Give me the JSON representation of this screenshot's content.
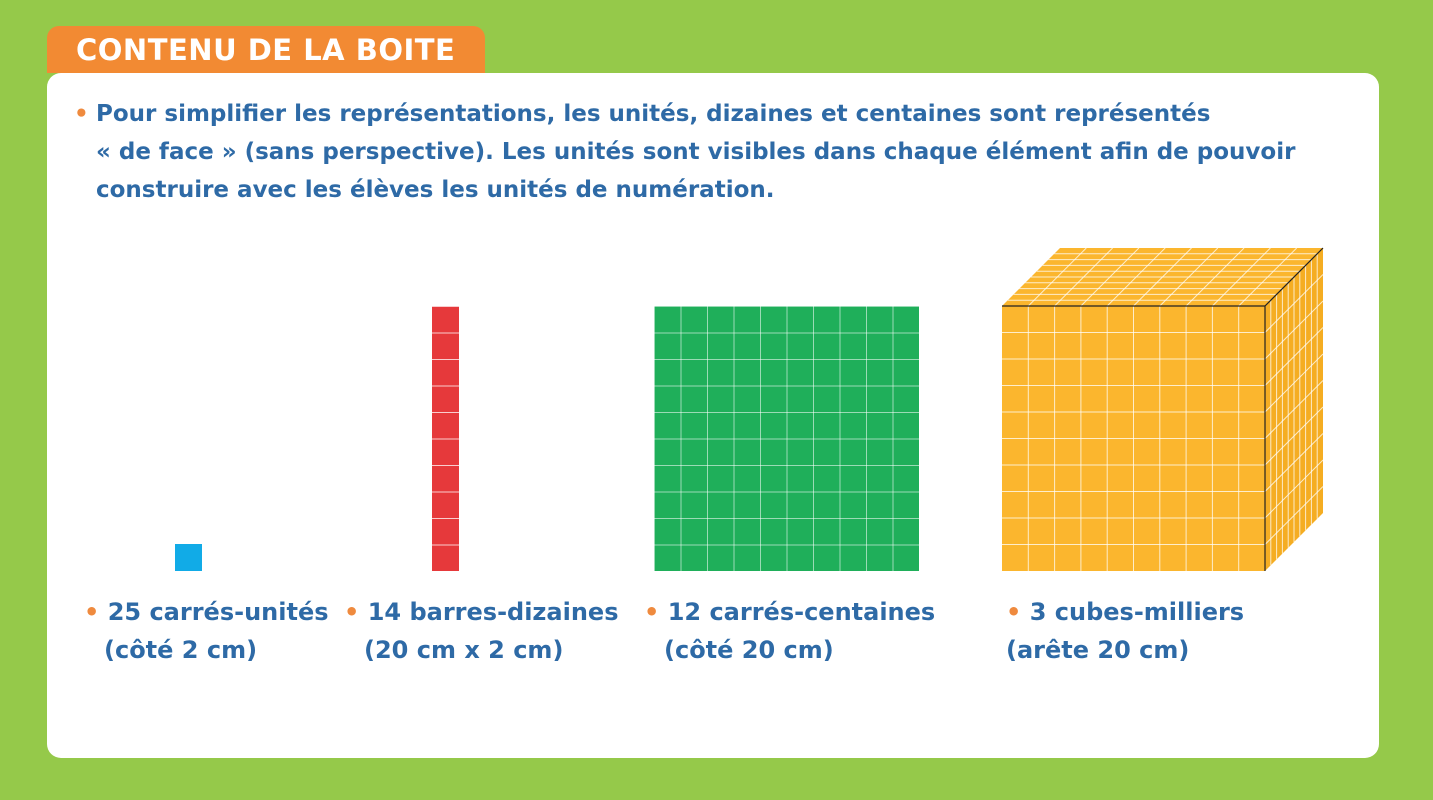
{
  "header": {
    "title": "CONTENU DE LA BOITE"
  },
  "intro": {
    "bullet": "•",
    "lines": [
      "Pour simplifier les représentations, les unités, dizaines et centaines sont représentés",
      "« de face » (sans perspective). Les unités sont visibles dans chaque élément afin de pouvoir",
      "construire avec les élèves les unités de numération."
    ]
  },
  "items": [
    {
      "name": "unit",
      "color": "#11abe7",
      "line1": "25 carrés-unités",
      "line2": "(côté 2 cm)"
    },
    {
      "name": "ten-bar",
      "color": "#e6393b",
      "line1": "14 barres-dizaines",
      "line2": "(20 cm x 2 cm)"
    },
    {
      "name": "hundred-square",
      "color": "#1faf5a",
      "line1": "12 carrés-centaines",
      "line2": "(côté 20 cm)"
    },
    {
      "name": "thousand-cube",
      "color": "#fbb62e",
      "line1": "3 cubes-milliers",
      "line2": "(arête 20 cm)"
    }
  ],
  "colors": {
    "background": "#95c94a",
    "tab": "#f28a33",
    "text": "#2e6aa6",
    "bullet": "#ef8a3e"
  }
}
